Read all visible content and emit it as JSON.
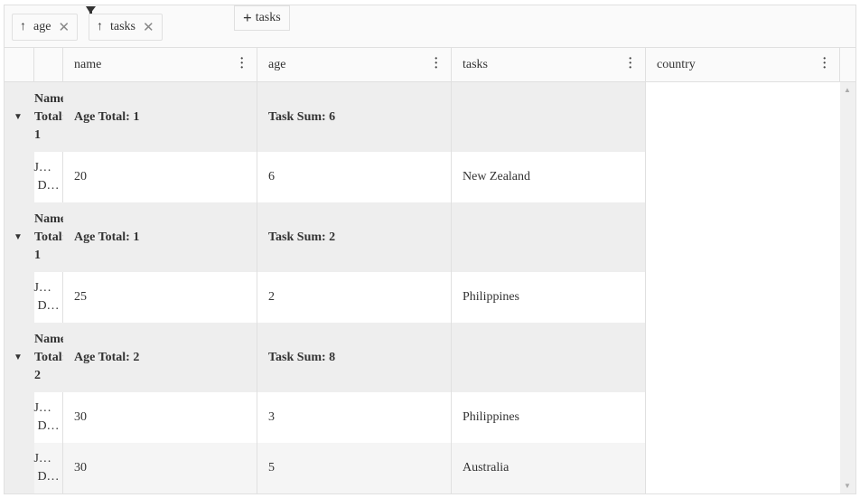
{
  "toolbar": {
    "group_chips": [
      {
        "label": "age",
        "icon": "arrow-up-icon",
        "remove": "✕"
      },
      {
        "label": "tasks",
        "icon": "arrow-up-icon",
        "remove": "✕"
      }
    ],
    "add_chip": {
      "icon": "+",
      "label": "tasks"
    }
  },
  "columns": [
    "name",
    "age",
    "tasks",
    "country"
  ],
  "rows": [
    {
      "type": "group",
      "label": [
        "Name",
        "Total:",
        "1"
      ],
      "cells": [
        "Age Total: 1",
        "Task Sum: 6",
        ""
      ]
    },
    {
      "type": "data",
      "label": [
        "J…",
        "D…"
      ],
      "cells": [
        "20",
        "6",
        "New Zealand"
      ]
    },
    {
      "type": "group",
      "label": [
        "Name",
        "Total:",
        "1"
      ],
      "cells": [
        "Age Total: 1",
        "Task Sum: 2",
        ""
      ]
    },
    {
      "type": "data",
      "label": [
        "J…",
        "D…"
      ],
      "cells": [
        "25",
        "2",
        "Philippines"
      ]
    },
    {
      "type": "group",
      "label": [
        "Name",
        "Total:",
        "2"
      ],
      "cells": [
        "Age Total: 2",
        "Task Sum: 8",
        ""
      ]
    },
    {
      "type": "data",
      "label": [
        "J…",
        "D…"
      ],
      "cells": [
        "30",
        "3",
        "Philippines"
      ]
    },
    {
      "type": "data",
      "label": [
        "J…",
        "D…"
      ],
      "cells": [
        "30",
        "5",
        "Australia"
      ],
      "alt": true
    }
  ],
  "colors": {
    "group_bg": "#eeeeee",
    "alt_row_bg": "#f5f5f5",
    "border": "#e0e0e0"
  }
}
